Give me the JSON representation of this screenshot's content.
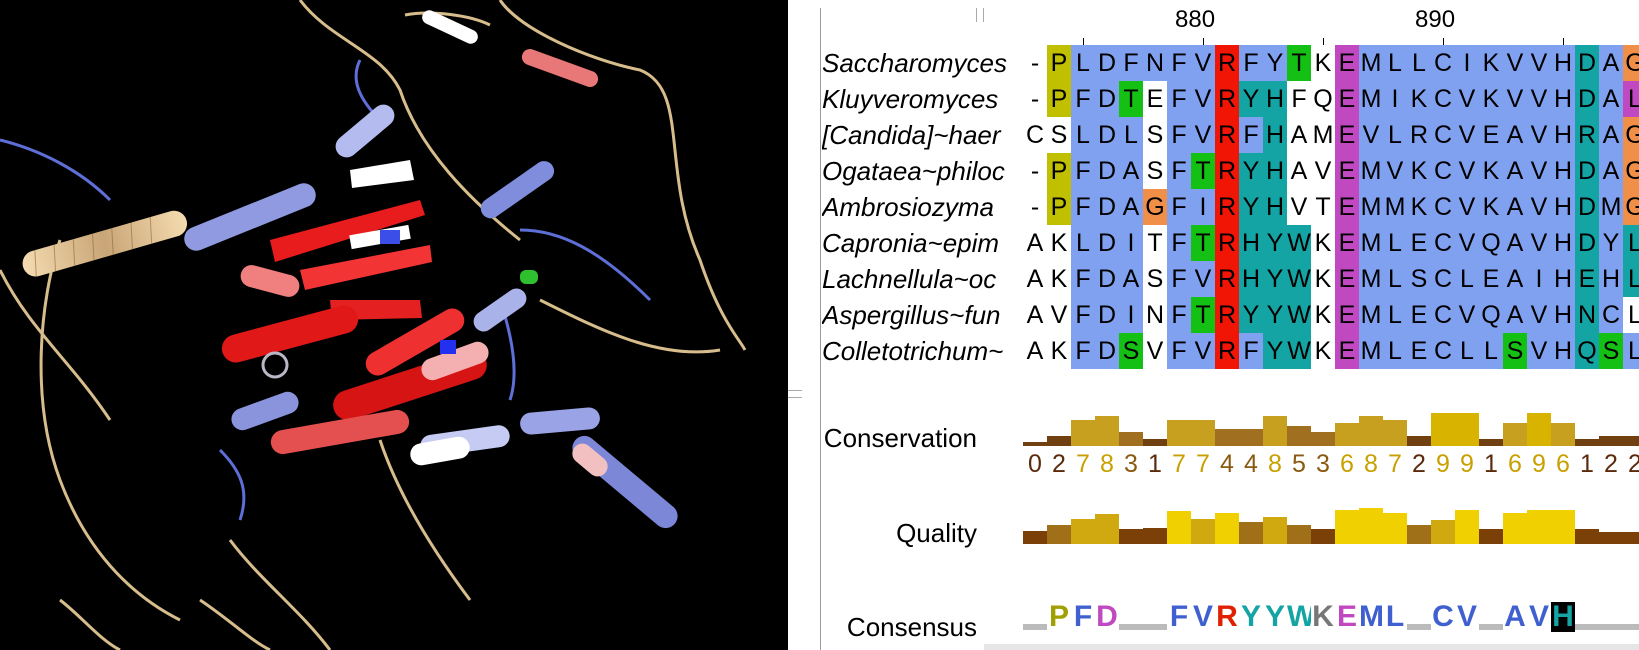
{
  "alignment": {
    "ruler": [
      {
        "label": "880",
        "col": 7
      },
      {
        "label": "890",
        "col": 17
      }
    ],
    "sequences": [
      {
        "name": "Saccharomyces",
        "residues": "-PLDFNFVRFYTKEMLLCIKVVHDAG"
      },
      {
        "name": "Kluyveromyces",
        "residues": "-PFDTEFVRYHFQEMIKCVKVVHDAL"
      },
      {
        "name": "[Candida]~haer",
        "residues": "CSLDLSFVRFHAMEVLRCVEAVHRAG"
      },
      {
        "name": "Ogataea~philoc",
        "residues": "-PFDASFTRYHAVEMVKCVKAVHDAG"
      },
      {
        "name": "Ambrosiozyma",
        "residues": "-PFDAGFIRYHVTEMMKCVKAVHDMG"
      },
      {
        "name": "Capronia~epim",
        "residues": "AKLDITFTRHYWKEMLECVQAVHDYL"
      },
      {
        "name": "Lachnellula~oc",
        "residues": "AKFDASFVRHYWKEMLSCLEAIHEHL"
      },
      {
        "name": "Aspergillus~fun",
        "residues": "AVFDINFTRYYWKEMLECVQAVHNCL"
      },
      {
        "name": "Colletotrichum~",
        "residues": "AKFDSVFVRFYWKEMLECLLSVHQSL"
      }
    ],
    "colors": [
      "-YBBBBBBRBBGWMBBBBBBBBBCBO",
      "-YBBGWBBRCCWWMBBBBBBBBBCBM",
      "WWBBBWBBRBCWWMBBBBBBBBBCBO",
      "-YBBBWBGRCCWWMBBBBBBBBBCBO",
      "-YBBBOBBRCCWWMBBBBBBBBBCBO",
      "WWBBBWBGRCCCWMBBBBBBBBBCBC",
      "WWBBBWBBRCCCWMBBBBBBBBBCBC",
      "WWBBBWBGRCCCWMBBBBBBBBBCBW",
      "WWBBGWBBRBCCWMBBBBBBGBBCGB"
    ],
    "palette": {
      "B": "#80a0f0",
      "R": "#f01505",
      "M": "#c048c0",
      "C": "#15a4a4",
      "G": "#15c015",
      "Y": "#c0c000",
      "O": "#f09048",
      "P": "#c0c000",
      "W": "#ffffff"
    }
  },
  "annotations": {
    "conservation_label": "Conservation",
    "quality_label": "Quality",
    "consensus_label": "Consensus",
    "conservation": [
      0,
      2,
      7,
      8,
      3,
      1,
      7,
      7,
      4,
      4,
      8,
      5,
      3,
      6,
      8,
      7,
      2,
      9,
      9,
      1,
      6,
      9,
      6,
      1,
      2,
      2
    ],
    "quality": [
      0.22,
      0.45,
      0.65,
      0.8,
      0.3,
      0.35,
      0.9,
      0.65,
      0.85,
      0.55,
      0.7,
      0.45,
      0.3,
      0.95,
      1.0,
      0.85,
      0.45,
      0.6,
      0.95,
      0.3,
      0.85,
      0.95,
      0.95,
      0.3,
      0.2,
      0.2
    ],
    "consensus": [
      {
        "l": "-",
        "c": "#777"
      },
      {
        "l": "P",
        "c": "#a0a000"
      },
      {
        "l": "F",
        "c": "#4060d0"
      },
      {
        "l": "D",
        "c": "#c048c0"
      },
      {
        "l": "-",
        "c": "#777"
      },
      {
        "l": "-",
        "c": "#777"
      },
      {
        "l": "F",
        "c": "#4060d0"
      },
      {
        "l": "V",
        "c": "#4060d0"
      },
      {
        "l": "R",
        "c": "#e02000"
      },
      {
        "l": "Y",
        "c": "#15a4a4"
      },
      {
        "l": "Y",
        "c": "#15a4a4"
      },
      {
        "l": "W",
        "c": "#15a4a4"
      },
      {
        "l": "K",
        "c": "#777"
      },
      {
        "l": "E",
        "c": "#c048c0"
      },
      {
        "l": "M",
        "c": "#4060d0"
      },
      {
        "l": "L",
        "c": "#4060d0"
      },
      {
        "l": "-",
        "c": "#777"
      },
      {
        "l": "C",
        "c": "#4060d0"
      },
      {
        "l": "V",
        "c": "#4060d0"
      },
      {
        "l": "-",
        "c": "#777"
      },
      {
        "l": "A",
        "c": "#4060d0"
      },
      {
        "l": "V",
        "c": "#4060d0"
      },
      {
        "l": "H",
        "c": "#15a4a4"
      },
      {
        "l": "-",
        "c": "#777"
      },
      {
        "l": "-",
        "c": "#777"
      },
      {
        "l": "-",
        "c": "#777"
      }
    ]
  }
}
